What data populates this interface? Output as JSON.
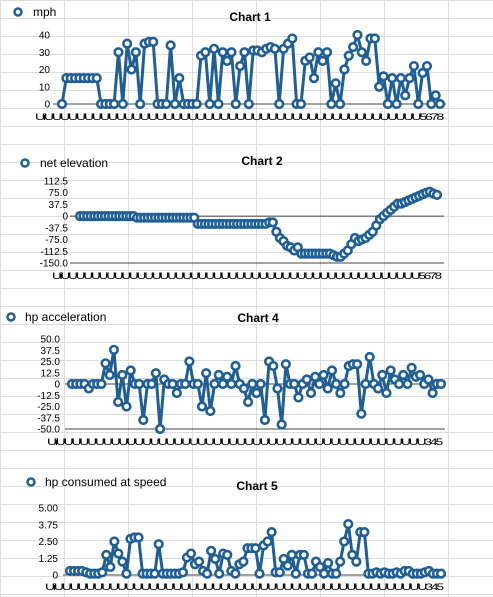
{
  "chart_data": [
    {
      "type": "line",
      "title": "Chart 1",
      "legend_position": "top-left",
      "grid": false,
      "series": [
        {
          "name": "mph",
          "color": "#1f5f94",
          "values": [
            0,
            15,
            15,
            15,
            15,
            15,
            15,
            15,
            15,
            0,
            0,
            0,
            0,
            30,
            0,
            35,
            20,
            30,
            0,
            35,
            36,
            36,
            0,
            0,
            0,
            34,
            0,
            15,
            0,
            0,
            0,
            0,
            28,
            30,
            0,
            32,
            0,
            30,
            25,
            30,
            0,
            22,
            30,
            0,
            31,
            31,
            30,
            32,
            33,
            32,
            0,
            32,
            35,
            38,
            0,
            0,
            25,
            27,
            15,
            30,
            25,
            30,
            0,
            12,
            0,
            20,
            28,
            33,
            40,
            30,
            25,
            38,
            38,
            10,
            16,
            0,
            15,
            0,
            15,
            5,
            15,
            22,
            0,
            18,
            22,
            0,
            5,
            0
          ],
          "ylim": [
            0,
            40
          ],
          "yticks": [
            "0",
            "10",
            "20",
            "30",
            "40"
          ]
        }
      ],
      "x_label_head": "Ui",
      "x_label_tail": "5678"
    },
    {
      "type": "line",
      "title": "Chart 2",
      "legend_position": "top-left",
      "grid": false,
      "series": [
        {
          "name": "net elevation",
          "color": "#1f5f94",
          "values": [
            0,
            0,
            0,
            0,
            0,
            0,
            0,
            0,
            0,
            0,
            0,
            0,
            0,
            0,
            0,
            0,
            -5,
            -5,
            -5,
            -5,
            -5,
            -5,
            -5,
            -5,
            -5,
            -5,
            -5,
            -5,
            -5,
            -5,
            -5,
            -5,
            -5,
            -25,
            -25,
            -25,
            -25,
            -25,
            -25,
            -25,
            -25,
            -25,
            -25,
            -25,
            -25,
            -25,
            -25,
            -25,
            -25,
            -25,
            -25,
            -25,
            -25,
            -20,
            -20,
            -50,
            -70,
            -80,
            -95,
            -100,
            -110,
            -100,
            -120,
            -120,
            -120,
            -120,
            -120,
            -120,
            -120,
            -120,
            -120,
            -125,
            -130,
            -130,
            -120,
            -110,
            -90,
            -70,
            -80,
            -75,
            -70,
            -60,
            -50,
            -30,
            -10,
            0,
            10,
            20,
            30,
            40,
            40,
            45,
            50,
            55,
            60,
            65,
            70,
            75,
            78,
            72,
            68
          ],
          "ylim": [
            -150,
            112.5
          ],
          "yticks": [
            "-150.0",
            "-112.5",
            "-75.0",
            "-37.5",
            "0",
            "37.5",
            "75.0",
            "112.5"
          ]
        }
      ],
      "x_label_head": "Ui",
      "x_label_tail": "5678"
    },
    {
      "type": "line",
      "title": "Chart 4",
      "legend_position": "top-left",
      "grid": false,
      "series": [
        {
          "name": "hp acceleration",
          "color": "#1f5f94",
          "values": [
            0,
            0,
            0,
            0,
            -5,
            0,
            0,
            0,
            23,
            10,
            38,
            -20,
            10,
            -25,
            15,
            0,
            0,
            -40,
            0,
            0,
            12,
            -50,
            5,
            0,
            0,
            -10,
            0,
            0,
            25,
            0,
            0,
            -25,
            12,
            -30,
            0,
            10,
            0,
            8,
            0,
            20,
            0,
            -5,
            -20,
            0,
            -10,
            0,
            -40,
            25,
            20,
            -5,
            -45,
            22,
            0,
            0,
            -15,
            0,
            5,
            -10,
            8,
            0,
            10,
            -5,
            15,
            0,
            -10,
            0,
            20,
            22,
            22,
            -33,
            0,
            30,
            0,
            -5,
            10,
            -10,
            15,
            5,
            0,
            10,
            0,
            18,
            8,
            10,
            0,
            5,
            -10,
            0,
            0
          ],
          "ylim": [
            -50,
            50
          ],
          "yticks": [
            "-50.0",
            "-37.5",
            "-25.0",
            "-12.5",
            "0",
            "12.5",
            "25.0",
            "37.5",
            "50.0"
          ]
        }
      ],
      "x_label_head": "Ui",
      "x_label_tail": "345"
    },
    {
      "type": "line",
      "title": "Chart 5",
      "legend_position": "top-left",
      "grid": false,
      "series": [
        {
          "name": "hp consumed at speed",
          "color": "#1f5f94",
          "values": [
            0.3,
            0.3,
            0.3,
            0.3,
            0.2,
            0.1,
            0.1,
            0.1,
            0.2,
            1.5,
            0.6,
            2.5,
            1.6,
            1.0,
            0.1,
            2.7,
            2.8,
            2.8,
            0.1,
            0.1,
            0.1,
            0.1,
            2.3,
            0.1,
            0.1,
            0.1,
            0.1,
            0.1,
            0.2,
            1.3,
            1.6,
            0.8,
            1.0,
            0.3,
            0.1,
            1.8,
            1.2,
            0.1,
            1.6,
            1.5,
            0.3,
            0.1,
            0.8,
            1.0,
            2.0,
            2.0,
            2.0,
            0.1,
            2.2,
            2.5,
            3.2,
            0.2,
            0.2,
            1.2,
            0.7,
            1.5,
            0.1,
            1.5,
            1.5,
            0.1,
            0.1,
            1.0,
            0.6,
            0.1,
            0.9,
            0.1,
            0.1,
            1.0,
            2.5,
            3.8,
            1.5,
            1.0,
            3.2,
            3.2,
            0.1,
            0.1,
            0.2,
            0.1,
            0.2,
            0.1,
            0.1,
            0.2,
            0.1,
            0.3,
            0.3,
            0.1,
            0.1,
            0.1,
            0.2,
            0.3,
            0.1,
            0.1,
            0.1
          ],
          "ylim": [
            0,
            5
          ],
          "yticks": [
            "0",
            "1.25",
            "2.50",
            "3.75",
            "5.00"
          ]
        }
      ],
      "x_label_head": "Ui",
      "x_label_tail": "345"
    }
  ]
}
